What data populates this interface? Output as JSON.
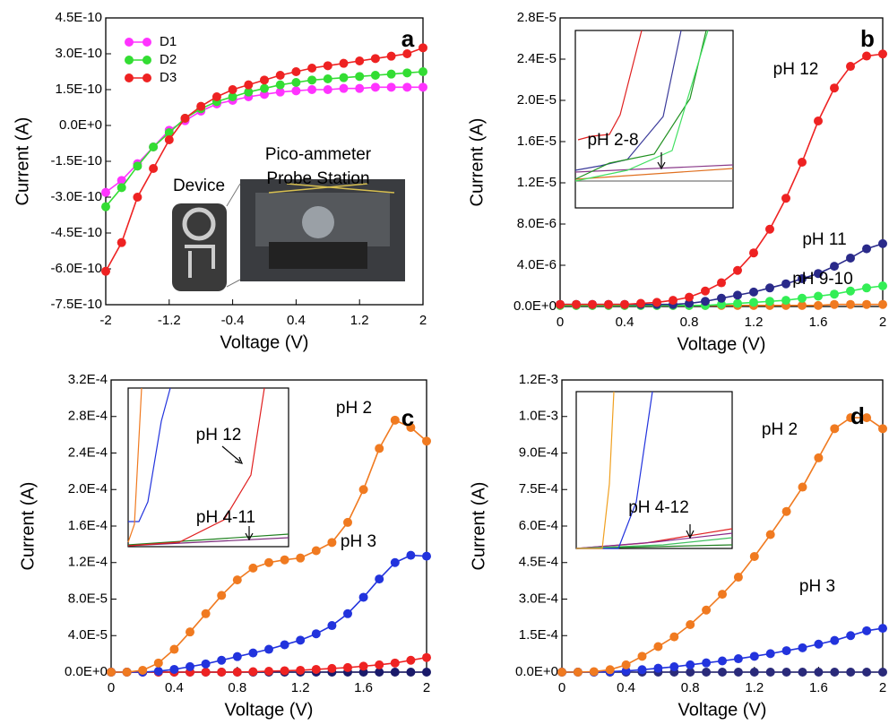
{
  "chart_data": [
    {
      "type": "line",
      "label": "a",
      "xlabel": "Voltage (V)",
      "ylabel": "Current (A)",
      "xlim": [
        -2,
        2
      ],
      "xticks": [
        -2,
        -1.2,
        -0.4,
        0.4,
        1.2,
        2
      ],
      "ylim": [
        -7.5e-10,
        4.5e-10
      ],
      "yticks": [
        {
          "value": -7.5e-10,
          "label": "-7.5E-10"
        },
        {
          "value": -6e-10,
          "label": "-6.0E-10"
        },
        {
          "value": -4.5e-10,
          "label": "-4.5E-10"
        },
        {
          "value": -3e-10,
          "label": "-3.0E-10"
        },
        {
          "value": -1.5e-10,
          "label": "-1.5E-10"
        },
        {
          "value": 0,
          "label": "0.0E+0"
        },
        {
          "value": 1.5e-10,
          "label": "1.5E-10"
        },
        {
          "value": 3e-10,
          "label": "3.0E-10"
        },
        {
          "value": 4.5e-10,
          "label": "4.5E-10"
        }
      ],
      "legend": "upper left",
      "x": [
        -2,
        -1.8,
        -1.6,
        -1.4,
        -1.2,
        -1,
        -0.8,
        -0.6,
        -0.4,
        -0.2,
        0,
        0.2,
        0.4,
        0.6,
        0.8,
        1,
        1.2,
        1.4,
        1.6,
        1.8,
        2
      ],
      "series": [
        {
          "name": "D1",
          "color": "#ff33ff",
          "values": [
            -2.8e-10,
            -2.3e-10,
            -1.6e-10,
            -9e-11,
            -2e-11,
            2e-11,
            6e-11,
            9e-11,
            1.05e-10,
            1.2e-10,
            1.3e-10,
            1.4e-10,
            1.45e-10,
            1.5e-10,
            1.5e-10,
            1.55e-10,
            1.55e-10,
            1.6e-10,
            1.6e-10,
            1.6e-10,
            1.6e-10
          ]
        },
        {
          "name": "D2",
          "color": "#33dd33",
          "values": [
            -3.4e-10,
            -2.6e-10,
            -1.7e-10,
            -9e-11,
            -3e-11,
            3e-11,
            7e-11,
            1e-10,
            1.2e-10,
            1.4e-10,
            1.55e-10,
            1.7e-10,
            1.8e-10,
            1.9e-10,
            1.95e-10,
            2e-10,
            2.05e-10,
            2.1e-10,
            2.15e-10,
            2.2e-10,
            2.25e-10
          ]
        },
        {
          "name": "D3",
          "color": "#ee2222",
          "values": [
            -6.1e-10,
            -4.9e-10,
            -3e-10,
            -1.8e-10,
            -6e-11,
            3e-11,
            8e-11,
            1.2e-10,
            1.5e-10,
            1.7e-10,
            1.9e-10,
            2.1e-10,
            2.25e-10,
            2.4e-10,
            2.5e-10,
            2.6e-10,
            2.7e-10,
            2.8e-10,
            2.9e-10,
            3e-10,
            3.25e-10
          ]
        }
      ],
      "annotations": [
        "Pico-ammeter",
        "Probe Station",
        "Device"
      ]
    },
    {
      "type": "line",
      "label": "b",
      "xlabel": "Voltage (V)",
      "ylabel": "Current (A)",
      "xlim": [
        0,
        2
      ],
      "xticks": [
        0,
        0.4,
        0.8,
        1.2,
        1.6,
        2
      ],
      "ylim": [
        0,
        2.8e-05
      ],
      "yticks": [
        {
          "value": 0,
          "label": "0.0E+0"
        },
        {
          "value": 4e-06,
          "label": "4.0E-6"
        },
        {
          "value": 8e-06,
          "label": "8.0E-6"
        },
        {
          "value": 1.2e-05,
          "label": "1.2E-5"
        },
        {
          "value": 1.6e-05,
          "label": "1.6E-5"
        },
        {
          "value": 2e-05,
          "label": "2.0E-5"
        },
        {
          "value": 2.4e-05,
          "label": "2.4E-5"
        },
        {
          "value": 2.8e-05,
          "label": "2.8E-5"
        }
      ],
      "x": [
        0,
        0.1,
        0.2,
        0.3,
        0.4,
        0.5,
        0.6,
        0.7,
        0.8,
        0.9,
        1,
        1.1,
        1.2,
        1.3,
        1.4,
        1.5,
        1.6,
        1.7,
        1.8,
        1.9,
        2
      ],
      "series": [
        {
          "color": "#f07a20",
          "values": [
            1e-07,
            1e-07,
            1e-07,
            1e-07,
            1e-07,
            1e-07,
            1e-07,
            1e-07,
            1e-07,
            1e-07,
            1e-07,
            1e-07,
            1e-07,
            1e-07,
            1e-07,
            1e-07,
            1e-07,
            2e-07,
            2e-07,
            2e-07,
            2e-07
          ]
        },
        {
          "color": "#33ee55",
          "values": [
            1e-07,
            1e-07,
            1e-07,
            1e-07,
            1e-07,
            1e-07,
            1e-07,
            1e-07,
            1e-07,
            1e-07,
            2e-07,
            3e-07,
            4e-07,
            5e-07,
            6e-07,
            8e-07,
            1e-06,
            1.2e-06,
            1.5e-06,
            1.8e-06,
            2e-06
          ]
        },
        {
          "color": "#2a2a8a",
          "values": [
            2e-07,
            2e-07,
            2e-07,
            2e-07,
            2e-07,
            2e-07,
            2e-07,
            2e-07,
            3e-07,
            5e-07,
            8e-07,
            1.1e-06,
            1.4e-06,
            1.8e-06,
            2.2e-06,
            2.7e-06,
            3.2e-06,
            3.9e-06,
            4.7e-06,
            5.6e-06,
            6.1e-06
          ]
        },
        {
          "color": "#ee2222",
          "values": [
            2e-07,
            2e-07,
            2e-07,
            2e-07,
            2e-07,
            3e-07,
            4e-07,
            6e-07,
            9e-07,
            1.5e-06,
            2.3e-06,
            3.5e-06,
            5.2e-06,
            7.5e-06,
            1.05e-05,
            1.4e-05,
            1.8e-05,
            2.12e-05,
            2.33e-05,
            2.43e-05,
            2.45e-05
          ]
        }
      ],
      "annotations": [
        "pH 12",
        "pH 11",
        "pH 9-10",
        "pH 2-8"
      ]
    },
    {
      "type": "line",
      "label": "c",
      "xlabel": "Voltage (V)",
      "ylabel": "Current (A)",
      "xlim": [
        0,
        2
      ],
      "xticks": [
        0,
        0.4,
        0.8,
        1.2,
        1.6,
        2
      ],
      "ylim": [
        0,
        0.00032
      ],
      "yticks": [
        {
          "value": 0,
          "label": "0.0E+0"
        },
        {
          "value": 4e-05,
          "label": "4.0E-5"
        },
        {
          "value": 8e-05,
          "label": "8.0E-5"
        },
        {
          "value": 0.00012,
          "label": "1.2E-4"
        },
        {
          "value": 0.00016,
          "label": "1.6E-4"
        },
        {
          "value": 0.0002,
          "label": "2.0E-4"
        },
        {
          "value": 0.00024,
          "label": "2.4E-4"
        },
        {
          "value": 0.00028,
          "label": "2.8E-4"
        },
        {
          "value": 0.00032,
          "label": "3.2E-4"
        }
      ],
      "x": [
        0,
        0.1,
        0.2,
        0.3,
        0.4,
        0.5,
        0.6,
        0.7,
        0.8,
        0.9,
        1,
        1.1,
        1.2,
        1.3,
        1.4,
        1.5,
        1.6,
        1.7,
        1.8,
        1.9,
        2
      ],
      "series": [
        {
          "color": "#1a1a6a",
          "values": [
            0,
            0,
            0,
            0,
            0,
            0,
            0,
            0,
            0,
            0,
            0,
            0,
            0,
            0,
            0,
            0,
            0,
            0,
            0,
            0,
            0
          ]
        },
        {
          "color": "#ee2222",
          "values": [
            0,
            0,
            0,
            0,
            0,
            0,
            0,
            0,
            0,
            5e-07,
            1e-06,
            1.5e-06,
            2e-06,
            3e-06,
            4e-06,
            5e-06,
            6.5e-06,
            8e-06,
            1e-05,
            1.3e-05,
            1.6e-05
          ]
        },
        {
          "color": "#2233dd",
          "values": [
            0,
            0,
            0,
            1e-06,
            3e-06,
            6e-06,
            9e-06,
            1.3e-05,
            1.7e-05,
            2.1e-05,
            2.5e-05,
            3e-05,
            3.5e-05,
            4.2e-05,
            5.1e-05,
            6.4e-05,
            8.2e-05,
            0.000102,
            0.00012,
            0.000128,
            0.000127
          ]
        },
        {
          "color": "#f07a20",
          "values": [
            0,
            0,
            2e-06,
            1e-05,
            2.5e-05,
            4.4e-05,
            6.4e-05,
            8.4e-05,
            0.000101,
            0.000114,
            0.00012,
            0.000123,
            0.000125,
            0.000133,
            0.000142,
            0.000164,
            0.0002,
            0.000245,
            0.000276,
            0.000268,
            0.000253
          ]
        }
      ],
      "annotations": [
        "pH 2",
        "pH 3",
        "pH 12",
        "pH 4-11"
      ]
    },
    {
      "type": "line",
      "label": "d",
      "xlabel": "Voltage (V)",
      "ylabel": "Current (A)",
      "xlim": [
        0,
        2
      ],
      "xticks": [
        0,
        0.4,
        0.8,
        1.2,
        1.6,
        2
      ],
      "ylim": [
        0,
        0.0012
      ],
      "yticks": [
        {
          "value": 0,
          "label": "0.0E+0"
        },
        {
          "value": 0.00015,
          "label": "1.5E-4"
        },
        {
          "value": 0.0003,
          "label": "3.0E-4"
        },
        {
          "value": 0.00045,
          "label": "4.5E-4"
        },
        {
          "value": 0.0006,
          "label": "6.0E-4"
        },
        {
          "value": 0.00075,
          "label": "7.5E-4"
        },
        {
          "value": 0.0009,
          "label": "9.0E-4"
        },
        {
          "value": 0.00105,
          "label": "1.0E-3"
        },
        {
          "value": 0.0012,
          "label": "1.2E-3"
        }
      ],
      "x": [
        0,
        0.1,
        0.2,
        0.3,
        0.4,
        0.5,
        0.6,
        0.7,
        0.8,
        0.9,
        1,
        1.1,
        1.2,
        1.3,
        1.4,
        1.5,
        1.6,
        1.7,
        1.8,
        1.9,
        2
      ],
      "series": [
        {
          "color": "#2a2a7a",
          "values": [
            0,
            0,
            0,
            0,
            0,
            0,
            0,
            0,
            0,
            0,
            0,
            0,
            0,
            0,
            0,
            0,
            0,
            0,
            0,
            0,
            0
          ]
        },
        {
          "color": "#2233dd",
          "values": [
            0,
            0,
            0,
            2e-06,
            5e-06,
            1e-05,
            1.6e-05,
            2.2e-05,
            3e-05,
            3.8e-05,
            4.6e-05,
            5.5e-05,
            6.5e-05,
            7.6e-05,
            8.8e-05,
            0.0001,
            0.000115,
            0.00013,
            0.00015,
            0.00017,
            0.00018
          ]
        },
        {
          "color": "#f07a20",
          "values": [
            0,
            0,
            2e-06,
            1e-05,
            3e-05,
            6.5e-05,
            0.000105,
            0.000145,
            0.000195,
            0.000255,
            0.00032,
            0.00039,
            0.000475,
            0.000565,
            0.00066,
            0.00076,
            0.00088,
            0.001,
            0.001045,
            0.001045,
            0.001
          ]
        }
      ],
      "annotations": [
        "pH 2",
        "pH 3",
        "pH 4-12"
      ]
    }
  ]
}
